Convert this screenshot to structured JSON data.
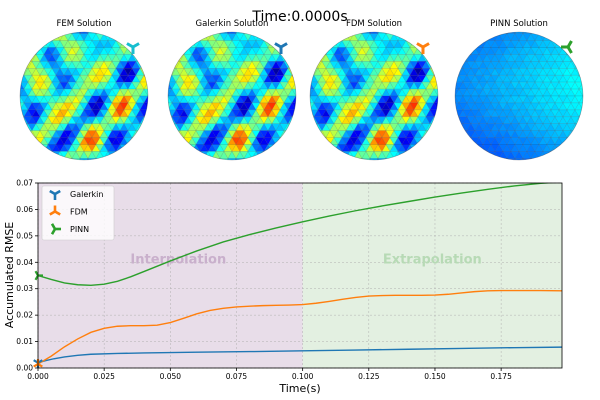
{
  "title": "Time:0.0000s",
  "panels": [
    {
      "label": "FEM Solution",
      "marker_color": "#17becf",
      "style": "speckle",
      "seed": 11
    },
    {
      "label": "Galerkin Solution",
      "marker_color": "#1f77b4",
      "style": "speckle",
      "seed": 11
    },
    {
      "label": "FDM Solution",
      "marker_color": "#ff7f0e",
      "style": "speckle",
      "seed": 11
    },
    {
      "label": "PINN Solution",
      "marker_color": "#2ca02c",
      "style": "smooth",
      "seed": 3
    }
  ],
  "colors": {
    "galerkin": "#1f77b4",
    "fdm": "#ff7f0e",
    "pinn": "#2ca02c",
    "interp_bg": "#e8dde9",
    "extrap_bg": "#e3f0e1",
    "interp_text": "#c9b0cc",
    "extrap_text": "#b7dab5"
  },
  "chart_data": {
    "type": "line",
    "xlabel": "Time(s)",
    "ylabel": "Accumulated RMSE",
    "xlim": [
      0,
      0.198
    ],
    "ylim": [
      0,
      0.07
    ],
    "xticks": [
      "0.000",
      "0.025",
      "0.050",
      "0.075",
      "0.100",
      "0.125",
      "0.150",
      "0.175"
    ],
    "yticks": [
      "0.00",
      "0.01",
      "0.02",
      "0.03",
      "0.04",
      "0.05",
      "0.06",
      "0.07"
    ],
    "grid": true,
    "legend_position": "upper-left",
    "regions": [
      {
        "label": "Interpolation",
        "x_range": [
          0,
          0.1
        ]
      },
      {
        "label": "Extrapolation",
        "x_range": [
          0.1,
          0.198
        ]
      }
    ],
    "series": [
      {
        "name": "Galerkin",
        "x": [
          0,
          0.003,
          0.006,
          0.01,
          0.015,
          0.02,
          0.03,
          0.04,
          0.06,
          0.08,
          0.1,
          0.12,
          0.14,
          0.16,
          0.18,
          0.198
        ],
        "y": [
          0.002,
          0.0028,
          0.0035,
          0.0042,
          0.0048,
          0.0052,
          0.0055,
          0.0057,
          0.006,
          0.0062,
          0.0065,
          0.0068,
          0.0071,
          0.0074,
          0.0077,
          0.0079
        ]
      },
      {
        "name": "FDM",
        "x": [
          0,
          0.005,
          0.01,
          0.015,
          0.02,
          0.025,
          0.03,
          0.035,
          0.04,
          0.045,
          0.05,
          0.055,
          0.06,
          0.065,
          0.07,
          0.075,
          0.08,
          0.085,
          0.09,
          0.095,
          0.1,
          0.105,
          0.11,
          0.115,
          0.12,
          0.125,
          0.13,
          0.135,
          0.14,
          0.145,
          0.15,
          0.155,
          0.16,
          0.165,
          0.17,
          0.175,
          0.18,
          0.185,
          0.19,
          0.198
        ],
        "y": [
          0.0015,
          0.0045,
          0.008,
          0.011,
          0.0135,
          0.015,
          0.0158,
          0.016,
          0.016,
          0.0162,
          0.0172,
          0.0188,
          0.0205,
          0.0218,
          0.0226,
          0.0231,
          0.0234,
          0.0236,
          0.0237,
          0.0238,
          0.024,
          0.0245,
          0.0252,
          0.026,
          0.0267,
          0.0272,
          0.0274,
          0.0275,
          0.0275,
          0.0275,
          0.0276,
          0.0279,
          0.0284,
          0.0289,
          0.0292,
          0.0293,
          0.0293,
          0.0293,
          0.0293,
          0.0292
        ]
      },
      {
        "name": "PINN",
        "x": [
          0,
          0.005,
          0.01,
          0.015,
          0.02,
          0.025,
          0.03,
          0.035,
          0.04,
          0.05,
          0.06,
          0.07,
          0.08,
          0.09,
          0.1,
          0.11,
          0.12,
          0.13,
          0.14,
          0.15,
          0.16,
          0.17,
          0.18,
          0.19,
          0.198
        ],
        "y": [
          0.035,
          0.0335,
          0.0322,
          0.0315,
          0.0313,
          0.0317,
          0.0328,
          0.0345,
          0.0365,
          0.0405,
          0.0443,
          0.0477,
          0.0505,
          0.053,
          0.0553,
          0.0575,
          0.0595,
          0.0613,
          0.063,
          0.0647,
          0.0662,
          0.0676,
          0.0689,
          0.0699,
          0.0704
        ]
      }
    ]
  }
}
